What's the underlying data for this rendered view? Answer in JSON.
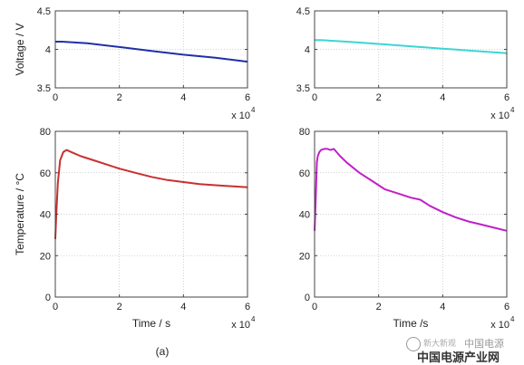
{
  "figure": {
    "caption": "(a)",
    "watermark": {
      "small": "新大新观",
      "main": "中国电源产业网",
      "overlay": "中国电源"
    }
  },
  "chart_data": [
    {
      "type": "line",
      "ylabel": "Voltage / V",
      "xlabel": "",
      "xlim": [
        0,
        60000
      ],
      "ylim": [
        3.5,
        4.5
      ],
      "x_ticks": [
        "0",
        "2",
        "4",
        "6"
      ],
      "y_ticks": [
        "3.5",
        "4",
        "4.5"
      ],
      "x_multiplier": "x 10",
      "x_exponent": "4",
      "grid": true,
      "series": [
        {
          "color": "#1f2fa8",
          "x": [
            0,
            2000,
            10000,
            20000,
            30000,
            40000,
            50000,
            60000
          ],
          "y": [
            4.1,
            4.1,
            4.08,
            4.03,
            3.98,
            3.93,
            3.89,
            3.84
          ]
        }
      ]
    },
    {
      "type": "line",
      "ylabel": "",
      "xlabel": "",
      "xlim": [
        0,
        60000
      ],
      "ylim": [
        3.5,
        4.5
      ],
      "x_ticks": [
        "0",
        "2",
        "4",
        "6"
      ],
      "y_ticks": [
        "3.5",
        "4",
        "4.5"
      ],
      "x_multiplier": "x 10",
      "x_exponent": "4",
      "grid": true,
      "series": [
        {
          "color": "#3dd5d5",
          "x": [
            0,
            2000,
            10000,
            20000,
            30000,
            40000,
            50000,
            60000
          ],
          "y": [
            4.12,
            4.12,
            4.1,
            4.07,
            4.04,
            4.01,
            3.98,
            3.95
          ]
        }
      ]
    },
    {
      "type": "line",
      "ylabel": "Temperature / °C",
      "xlabel": "Time / s",
      "xlim": [
        0,
        60000
      ],
      "ylim": [
        0,
        80
      ],
      "x_ticks": [
        "0",
        "2",
        "4",
        "6"
      ],
      "y_ticks": [
        "0",
        "20",
        "40",
        "60",
        "80"
      ],
      "x_multiplier": "x 10",
      "x_exponent": "4",
      "grid": true,
      "series": [
        {
          "color": "#c8302f",
          "x": [
            0,
            300,
            800,
            1500,
            2500,
            3500,
            5000,
            8000,
            12000,
            16000,
            20000,
            25000,
            30000,
            35000,
            40000,
            45000,
            50000,
            55000,
            60000
          ],
          "y": [
            28,
            40,
            55,
            66,
            70,
            71,
            70,
            68,
            66,
            64,
            62,
            60,
            58,
            56.5,
            55.5,
            54.5,
            54,
            53.5,
            53
          ]
        }
      ]
    },
    {
      "type": "line",
      "ylabel": "",
      "xlabel": "Time /s",
      "xlim": [
        0,
        60000
      ],
      "ylim": [
        0,
        80
      ],
      "x_ticks": [
        "0",
        "2",
        "4",
        "6"
      ],
      "y_ticks": [
        "0",
        "20",
        "40",
        "60",
        "80"
      ],
      "x_multiplier": "x 10",
      "x_exponent": "4",
      "grid": true,
      "series": [
        {
          "color": "#c020c8",
          "x": [
            0,
            300,
            700,
            1000,
            1500,
            2000,
            3000,
            4000,
            5000,
            6000,
            8000,
            10000,
            14000,
            18000,
            22000,
            26000,
            30000,
            33000,
            36000,
            40000,
            44000,
            48000,
            52000,
            56000,
            60000
          ],
          "y": [
            32,
            45,
            65,
            68,
            70,
            71,
            71.5,
            71.5,
            71,
            71.5,
            68,
            65,
            60,
            56,
            52,
            50,
            48,
            47,
            44,
            41,
            38.5,
            36.5,
            35,
            33.5,
            32
          ]
        }
      ]
    }
  ]
}
